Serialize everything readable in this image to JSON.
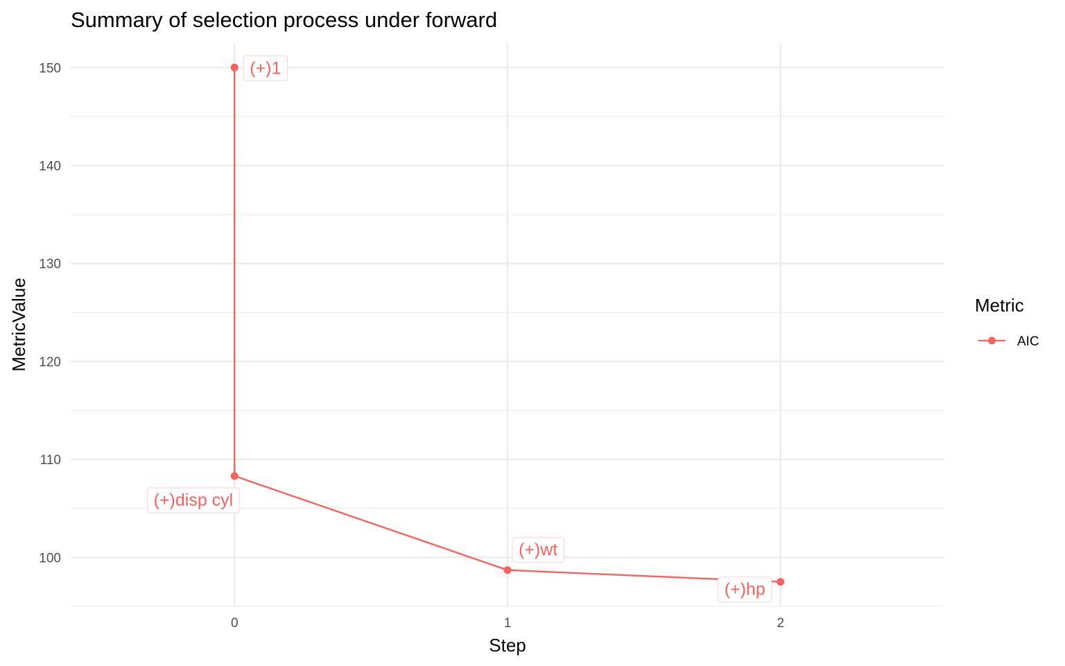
{
  "chart_data": {
    "type": "line",
    "title": "Summary of selection process under forward",
    "xlabel": "Step",
    "ylabel": "MetricValue",
    "xlim": [
      -0.6,
      2.6
    ],
    "ylim": [
      95,
      152.5
    ],
    "x_ticks": [
      "0",
      "1",
      "2"
    ],
    "y_ticks": [
      "100",
      "110",
      "120",
      "130",
      "140",
      "150"
    ],
    "grid": true,
    "legend": {
      "title": "Metric",
      "position": "right"
    },
    "series": [
      {
        "name": "AIC",
        "color": "#f8615e",
        "points": [
          {
            "x": 0,
            "y": 150.0,
            "label": "(+)1"
          },
          {
            "x": 0,
            "y": 108.3,
            "label": "(+)disp cyl"
          },
          {
            "x": 1,
            "y": 98.7,
            "label": "(+)wt"
          },
          {
            "x": 2,
            "y": 97.5,
            "label": "(+)hp"
          }
        ]
      }
    ]
  }
}
